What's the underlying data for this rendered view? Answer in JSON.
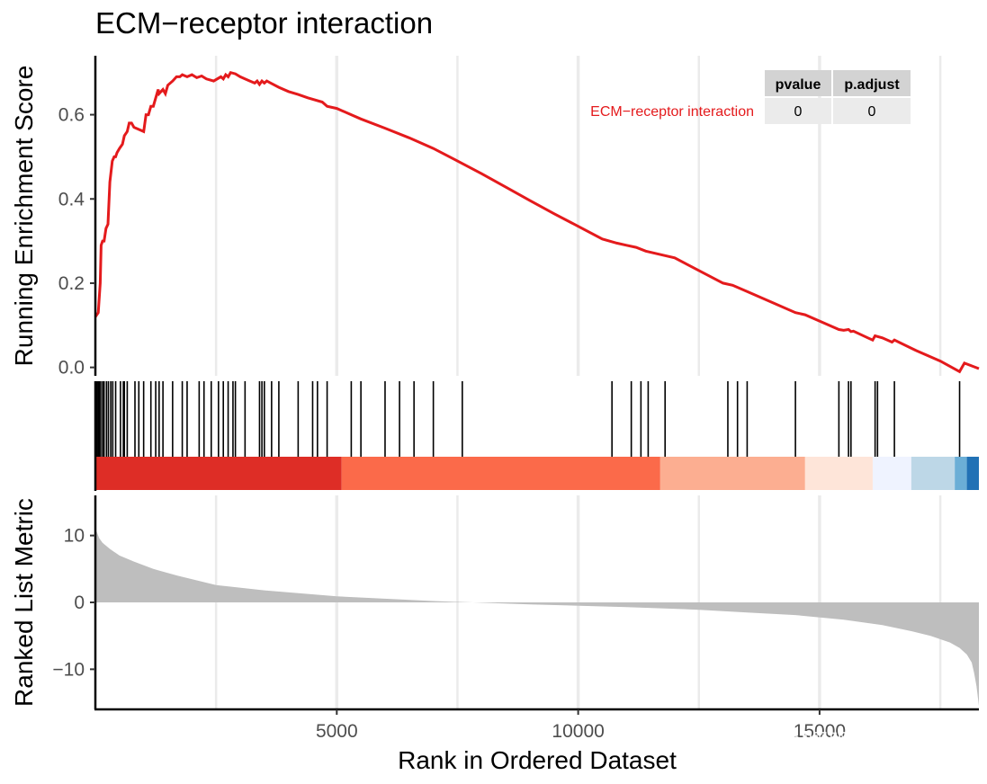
{
  "chart_data": {
    "type": "line",
    "title": "ECM−receptor interaction",
    "xlabel": "Rank in Ordered Dataset",
    "xlim": [
      0,
      18300
    ],
    "x_ticks": [
      5000,
      10000,
      15000
    ],
    "x_tick_labels": [
      "5000",
      "10000",
      "15000"
    ],
    "panels": {
      "running_score": {
        "ylabel": "Running Enrichment Score",
        "ylim": [
          -0.02,
          0.74
        ],
        "y_ticks": [
          0.0,
          0.2,
          0.4,
          0.6
        ],
        "y_tick_labels": [
          "0.0",
          "0.2",
          "0.4",
          "0.6"
        ],
        "line_color": "#e41a1c",
        "series": [
          {
            "name": "ECM−receptor interaction",
            "x": [
              0,
              60,
              100,
              120,
              150,
              180,
              220,
              260,
              300,
              350,
              390,
              420,
              450,
              500,
              560,
              600,
              660,
              700,
              750,
              800,
              1000,
              1050,
              1100,
              1150,
              1200,
              1300,
              1320,
              1400,
              1450,
              1500,
              1600,
              1680,
              1750,
              1800,
              1900,
              2000,
              2100,
              2200,
              2300,
              2450,
              2600,
              2650,
              2700,
              2750,
              2800,
              2900,
              3000,
              3100,
              3200,
              3300,
              3350,
              3400,
              3450,
              3500,
              3550,
              3650,
              3800,
              4000,
              4200,
              4400,
              4700,
              4800,
              5000,
              5500,
              6000,
              6500,
              7000,
              7500,
              8000,
              8500,
              9000,
              9500,
              10000,
              10500,
              10800,
              11000,
              11200,
              11400,
              11700,
              12000,
              12500,
              13000,
              13200,
              13500,
              14000,
              14500,
              14700,
              15000,
              15400,
              15500,
              15600,
              15650,
              15700,
              16000,
              16100,
              16150,
              16300,
              16500,
              16550,
              17000,
              17500,
              17900,
              18000,
              18300
            ],
            "y": [
              0.12,
              0.13,
              0.2,
              0.29,
              0.3,
              0.3,
              0.33,
              0.34,
              0.44,
              0.49,
              0.5,
              0.5,
              0.51,
              0.52,
              0.53,
              0.55,
              0.56,
              0.58,
              0.58,
              0.57,
              0.56,
              0.6,
              0.6,
              0.62,
              0.62,
              0.66,
              0.65,
              0.66,
              0.65,
              0.67,
              0.68,
              0.69,
              0.69,
              0.695,
              0.69,
              0.695,
              0.688,
              0.692,
              0.685,
              0.68,
              0.69,
              0.685,
              0.695,
              0.69,
              0.7,
              0.697,
              0.69,
              0.685,
              0.68,
              0.675,
              0.68,
              0.672,
              0.68,
              0.675,
              0.68,
              0.674,
              0.665,
              0.655,
              0.648,
              0.64,
              0.63,
              0.62,
              0.615,
              0.59,
              0.568,
              0.545,
              0.52,
              0.49,
              0.46,
              0.428,
              0.396,
              0.365,
              0.335,
              0.305,
              0.295,
              0.29,
              0.285,
              0.276,
              0.268,
              0.26,
              0.23,
              0.2,
              0.195,
              0.18,
              0.155,
              0.13,
              0.125,
              0.11,
              0.09,
              0.088,
              0.09,
              0.085,
              0.086,
              0.07,
              0.065,
              0.075,
              0.07,
              0.06,
              0.065,
              0.04,
              0.015,
              -0.01,
              0.01,
              -0.003
            ]
          }
        ]
      },
      "gene_hits": {
        "hit_ranks": [
          10,
          30,
          55,
          80,
          110,
          150,
          180,
          230,
          270,
          320,
          360,
          420,
          520,
          580,
          600,
          660,
          820,
          900,
          1000,
          1150,
          1250,
          1320,
          1400,
          1600,
          1800,
          1900,
          2150,
          2250,
          2400,
          2550,
          2650,
          2750,
          2850,
          2900,
          3100,
          3400,
          3450,
          3500,
          3650,
          3800,
          4200,
          4500,
          4600,
          4800,
          5300,
          5500,
          6000,
          6300,
          6600,
          7000,
          7600,
          10700,
          11100,
          11300,
          11450,
          11800,
          13100,
          13300,
          13500,
          14500,
          15400,
          15600,
          15650,
          16150,
          16200,
          16550,
          17900
        ],
        "color_bands": [
          {
            "start": 0,
            "end": 5100,
            "color": "#de2d26"
          },
          {
            "start": 5100,
            "end": 11700,
            "color": "#fb6a4a"
          },
          {
            "start": 11700,
            "end": 14700,
            "color": "#fcae91"
          },
          {
            "start": 14700,
            "end": 16100,
            "color": "#fee5d9"
          },
          {
            "start": 16100,
            "end": 16900,
            "color": "#eff3ff"
          },
          {
            "start": 16900,
            "end": 17800,
            "color": "#bdd7e7"
          },
          {
            "start": 17800,
            "end": 18050,
            "color": "#6baed6"
          },
          {
            "start": 18050,
            "end": 18300,
            "color": "#2171b5"
          }
        ]
      },
      "ranked_metric": {
        "ylabel": "Ranked List Metric",
        "ylim": [
          -16,
          16
        ],
        "y_ticks": [
          -10,
          0,
          10
        ],
        "y_tick_labels": [
          "−10",
          "0",
          "10"
        ],
        "fill_color": "#bebebe",
        "x": [
          0,
          30,
          80,
          150,
          300,
          500,
          800,
          1200,
          1700,
          2500,
          3500,
          5000,
          7000,
          9000,
          11000,
          12500,
          13500,
          14500,
          15500,
          16300,
          16900,
          17300,
          17700,
          17900,
          18050,
          18150,
          18200,
          18250,
          18300
        ],
        "values": [
          11,
          10.5,
          9.6,
          8.9,
          8.0,
          7.0,
          6.1,
          5.0,
          4.0,
          2.6,
          1.8,
          0.9,
          0.2,
          -0.3,
          -0.7,
          -1.1,
          -1.5,
          -1.9,
          -2.6,
          -3.4,
          -4.3,
          -5.0,
          -6.0,
          -6.8,
          -7.8,
          -9.0,
          -10.5,
          -12.5,
          -15.5
        ]
      }
    },
    "table": {
      "headers": [
        "pvalue",
        "p.adjust"
      ],
      "rows": [
        {
          "label": "ECM−receptor interaction",
          "label_color": "#e41a1c",
          "pvalue": "0",
          "padjust": "0"
        }
      ]
    }
  },
  "watermark": "知乎 @嘿嘿嘿嘿哈"
}
